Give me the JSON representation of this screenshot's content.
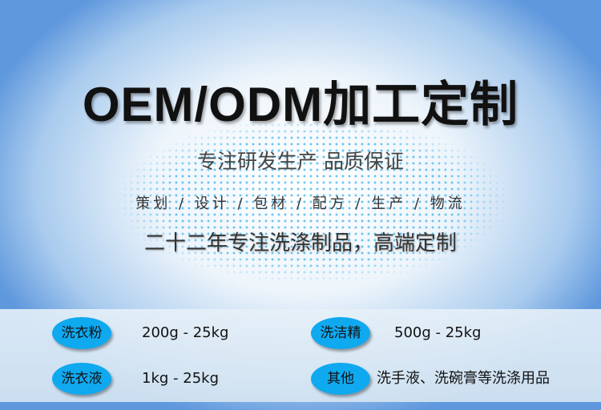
{
  "title": "OEM/ODM加工定制",
  "slogan": "专注研发生产 品质保证",
  "services": "策划 / 设计 / 包材 / 配方 / 生产 / 物流",
  "tagline": "二十二年专注洗涤制品，高端定制",
  "colors": {
    "pill": "#0fa9ef",
    "dots": "#3fb4ee"
  },
  "products": [
    {
      "name": "洗衣粉",
      "range": "200g - 25kg"
    },
    {
      "name": "洗洁精",
      "range": "500g - 25kg"
    },
    {
      "name": "洗衣液",
      "range": "1kg - 25kg"
    },
    {
      "name": "其他",
      "range": "洗手液、洗碗膏等洗涤用品"
    }
  ]
}
